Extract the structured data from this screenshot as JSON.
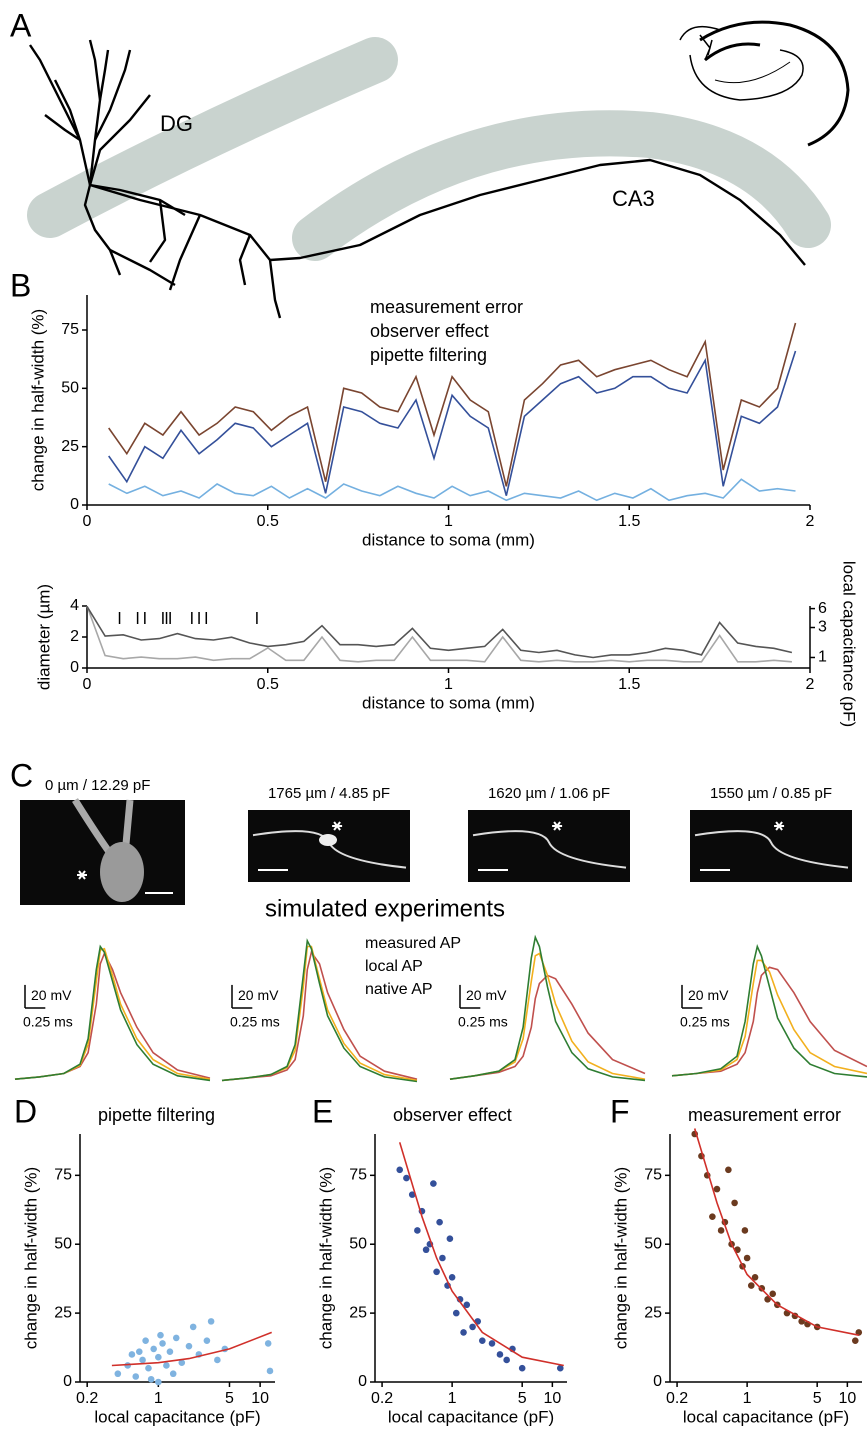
{
  "panels": [
    "A",
    "B",
    "C",
    "D",
    "E",
    "F"
  ],
  "regions": [
    "DG",
    "CA3"
  ],
  "chart_data": [
    {
      "type": "line",
      "xlabel": "distance to soma (mm)",
      "ylabel": "change in half-width (%)",
      "xlim": [
        0,
        2
      ],
      "xticks": [
        0,
        0.5,
        1,
        1.5,
        2
      ],
      "ylim": [
        0,
        90
      ],
      "yticks": [
        0,
        25,
        50,
        75
      ],
      "x": [
        0.06,
        0.11,
        0.16,
        0.21,
        0.26,
        0.31,
        0.36,
        0.41,
        0.46,
        0.51,
        0.56,
        0.61,
        0.66,
        0.71,
        0.76,
        0.81,
        0.86,
        0.91,
        0.96,
        1.01,
        1.06,
        1.11,
        1.16,
        1.21,
        1.26,
        1.31,
        1.36,
        1.41,
        1.46,
        1.51,
        1.56,
        1.61,
        1.66,
        1.71,
        1.76,
        1.81,
        1.86,
        1.91,
        1.96
      ],
      "series": [
        {
          "name": "measurement error",
          "color": "#7a4530",
          "values": [
            33,
            22,
            35,
            30,
            40,
            30,
            35,
            42,
            40,
            32,
            38,
            42,
            10,
            50,
            48,
            42,
            40,
            55,
            30,
            55,
            45,
            40,
            8,
            45,
            52,
            60,
            62,
            55,
            58,
            60,
            62,
            58,
            55,
            70,
            15,
            45,
            42,
            50,
            78
          ]
        },
        {
          "name": "observer effect",
          "color": "#34509a",
          "values": [
            21,
            10,
            25,
            20,
            32,
            22,
            28,
            35,
            33,
            25,
            30,
            35,
            5,
            42,
            40,
            35,
            33,
            45,
            20,
            47,
            38,
            33,
            4,
            38,
            45,
            52,
            55,
            48,
            50,
            55,
            55,
            50,
            48,
            62,
            8,
            38,
            35,
            42,
            66
          ]
        },
        {
          "name": "pipette filtering",
          "color": "#74b0e0",
          "values": [
            9,
            5,
            8,
            4,
            6,
            3,
            9,
            5,
            4,
            8,
            3,
            7,
            3,
            9,
            6,
            4,
            8,
            5,
            3,
            8,
            4,
            6,
            2,
            5,
            4,
            3,
            6,
            2,
            5,
            3,
            7,
            2,
            4,
            5,
            3,
            11,
            6,
            7,
            6
          ]
        }
      ]
    },
    {
      "type": "line",
      "xlabel": "distance to soma (mm)",
      "ylabel": "diameter (µm)",
      "y2label": "local capacitance (pF)",
      "xlim": [
        0,
        2
      ],
      "xticks": [
        0,
        0.5,
        1,
        1.5,
        2
      ],
      "ylim": [
        0,
        4
      ],
      "yticks": [
        0,
        2,
        4
      ],
      "y2lim": [
        0.68,
        6.6
      ],
      "y2ticks": [
        1,
        3,
        6
      ],
      "y2scale": "log",
      "events": [
        0.09,
        0.14,
        0.16,
        0.21,
        0.22,
        0.23,
        0.29,
        0.31,
        0.33,
        0.47
      ],
      "x": [
        0,
        0.05,
        0.1,
        0.15,
        0.2,
        0.25,
        0.3,
        0.35,
        0.4,
        0.45,
        0.5,
        0.55,
        0.6,
        0.65,
        0.7,
        0.75,
        0.8,
        0.85,
        0.9,
        0.95,
        1,
        1.05,
        1.1,
        1.15,
        1.2,
        1.25,
        1.3,
        1.35,
        1.4,
        1.45,
        1.5,
        1.55,
        1.6,
        1.65,
        1.7,
        1.75,
        1.8,
        1.85,
        1.9,
        1.95
      ],
      "series": [
        {
          "color": "#a8a8a8",
          "axis": "y",
          "values": [
            4.0,
            0.8,
            0.6,
            0.7,
            0.6,
            0.6,
            0.7,
            0.5,
            0.6,
            0.6,
            1.3,
            0.5,
            0.5,
            2.0,
            0.5,
            0.4,
            0.5,
            0.5,
            2.0,
            0.5,
            0.5,
            0.5,
            0.4,
            2.0,
            0.5,
            0.4,
            0.5,
            0.4,
            0.4,
            0.5,
            0.4,
            0.5,
            0.5,
            0.4,
            0.4,
            2.1,
            0.4,
            0.4,
            0.5,
            0.4
          ]
        },
        {
          "color": "#555555",
          "axis": "y2",
          "values": [
            6.5,
            2.2,
            2.3,
            1.9,
            2.0,
            2.4,
            2.0,
            1.9,
            2.1,
            1.7,
            1.5,
            1.6,
            1.8,
            3.2,
            1.6,
            1.6,
            1.5,
            1.6,
            2.9,
            1.4,
            1.3,
            1.4,
            1.5,
            2.8,
            1.3,
            1.2,
            1.3,
            1.1,
            1.0,
            1.1,
            1.1,
            1.2,
            1.4,
            1.3,
            1.1,
            3.6,
            1.7,
            1.5,
            1.4,
            1.2
          ]
        }
      ]
    },
    {
      "type": "traces",
      "title": "simulated experiments",
      "x": [
        0,
        0.3,
        0.6,
        0.8,
        0.9,
        1.0,
        1.05,
        1.1,
        1.2,
        1.3,
        1.5,
        1.7,
        2.0,
        2.4
      ],
      "xlim": [
        0,
        2.4
      ],
      "ylim": [
        -80,
        50
      ],
      "series": [
        {
          "name": "measured AP",
          "color": "#c0504d"
        },
        {
          "name": "local AP",
          "color": "#f2b01e"
        },
        {
          "name": "native AP",
          "color": "#2e7d32"
        }
      ],
      "scalebar": {
        "y": {
          "value": 20,
          "label": "20 mV"
        },
        "x": {
          "value": 0.25,
          "label": "0.25 ms"
        }
      },
      "panels": [
        {
          "caption": "0 µm / 12.29 pF",
          "values": [
            [
              -75,
              -73,
              -70,
              -64,
              -52,
              -10,
              25,
              34,
              20,
              0,
              -30,
              -52,
              -67,
              -74
            ],
            [
              -75,
              -73,
              -70,
              -63,
              -45,
              10,
              37,
              38,
              15,
              -10,
              -40,
              -58,
              -70,
              -75
            ],
            [
              -75,
              -73,
              -70,
              -62,
              -40,
              20,
              40,
              35,
              10,
              -15,
              -45,
              -62,
              -72,
              -76
            ]
          ]
        },
        {
          "caption": "1765 µm / 4.85 pF",
          "values": [
            [
              -76,
              -74,
              -72,
              -67,
              -58,
              -20,
              20,
              35,
              25,
              0,
              -32,
              -55,
              -68,
              -75
            ],
            [
              -76,
              -74,
              -71,
              -65,
              -50,
              5,
              40,
              40,
              12,
              -15,
              -44,
              -61,
              -71,
              -76
            ],
            [
              -76,
              -74,
              -71,
              -64,
              -45,
              15,
              45,
              38,
              8,
              -20,
              -48,
              -64,
              -73,
              -77
            ]
          ]
        },
        {
          "caption": "1620 µm / 1.06 pF",
          "values": [
            [
              -75,
              -72,
              -69,
              -64,
              -55,
              -30,
              -5,
              8,
              15,
              12,
              -10,
              -35,
              -58,
              -70
            ],
            [
              -75,
              -72,
              -68,
              -60,
              -40,
              10,
              32,
              34,
              15,
              -10,
              -42,
              -60,
              -70,
              -75
            ],
            [
              -75,
              -72,
              -68,
              -58,
              -30,
              30,
              48,
              40,
              5,
              -25,
              -52,
              -66,
              -73,
              -76
            ]
          ]
        },
        {
          "caption": "1550 µm / 0.85 pF",
          "values": [
            [
              -72,
              -70,
              -68,
              -62,
              -52,
              -25,
              0,
              15,
              22,
              20,
              0,
              -25,
              -50,
              -64
            ],
            [
              -72,
              -70,
              -67,
              -58,
              -38,
              8,
              28,
              28,
              18,
              -2,
              -32,
              -52,
              -64,
              -70
            ],
            [
              -72,
              -70,
              -66,
              -55,
              -25,
              25,
              40,
              32,
              5,
              -22,
              -48,
              -62,
              -70,
              -73
            ]
          ]
        }
      ]
    },
    {
      "type": "scatter",
      "title": "pipette filtering",
      "color": "#7fb3e0",
      "xlabel": "local capacitance (pF)",
      "ylabel": "change in half-width (%)",
      "xscale": "log",
      "xlim": [
        0.17,
        14
      ],
      "xticks": [
        0.2,
        1,
        5,
        10
      ],
      "ylim": [
        0,
        90
      ],
      "yticks": [
        0,
        25,
        50,
        75
      ],
      "x": [
        0.4,
        0.5,
        0.55,
        0.6,
        0.7,
        0.75,
        0.8,
        0.9,
        1,
        1,
        1.1,
        1.2,
        1.3,
        1.5,
        1.7,
        2,
        2.2,
        2.5,
        3,
        3.3,
        3.8,
        4.5,
        12,
        12.5,
        0.65,
        0.85,
        1.05,
        1.4
      ],
      "values": [
        3,
        6,
        10,
        2,
        8,
        15,
        5,
        12,
        0,
        9,
        14,
        6,
        11,
        16,
        7,
        13,
        20,
        10,
        15,
        22,
        8,
        12,
        14,
        4,
        11,
        1,
        17,
        3
      ],
      "fit": {
        "color": "#d0302a",
        "x": [
          0.35,
          0.5,
          1,
          2,
          5,
          13
        ],
        "values": [
          6,
          6.3,
          7,
          8.5,
          12,
          18
        ]
      }
    },
    {
      "type": "scatter",
      "title": "observer effect",
      "color": "#34509a",
      "xlabel": "local capacitance (pF)",
      "ylabel": "change in half-width (%)",
      "xscale": "log",
      "xlim": [
        0.17,
        14
      ],
      "xticks": [
        0.2,
        1,
        5,
        10
      ],
      "ylim": [
        0,
        90
      ],
      "yticks": [
        0,
        25,
        50,
        75
      ],
      "x": [
        0.3,
        0.35,
        0.4,
        0.45,
        0.5,
        0.55,
        0.6,
        0.65,
        0.7,
        0.8,
        0.9,
        1,
        1.1,
        1.2,
        1.4,
        1.6,
        1.8,
        2,
        2.5,
        3,
        3.5,
        4,
        5,
        12,
        0.75,
        0.95,
        1.3
      ],
      "values": [
        77,
        74,
        68,
        55,
        62,
        48,
        50,
        72,
        40,
        45,
        35,
        38,
        25,
        30,
        28,
        20,
        22,
        15,
        14,
        10,
        8,
        12,
        5,
        5,
        58,
        52,
        18
      ],
      "fit": {
        "color": "#d0302a",
        "x": [
          0.3,
          0.5,
          0.7,
          1,
          2,
          5,
          13
        ],
        "values": [
          87,
          60,
          45,
          33,
          18,
          9,
          6
        ]
      }
    },
    {
      "type": "scatter",
      "title": "measurement error",
      "color": "#6b3a1f",
      "xlabel": "local capacitance (pF)",
      "ylabel": "change in half-width (%)",
      "xscale": "log",
      "xlim": [
        0.17,
        14
      ],
      "xticks": [
        0.2,
        1,
        5,
        10
      ],
      "ylim": [
        0,
        90
      ],
      "yticks": [
        0,
        25,
        50,
        75
      ],
      "x": [
        0.3,
        0.35,
        0.4,
        0.45,
        0.5,
        0.55,
        0.6,
        0.65,
        0.7,
        0.8,
        0.9,
        1,
        1.1,
        1.2,
        1.4,
        1.6,
        1.8,
        2,
        2.5,
        3,
        3.5,
        4,
        5,
        12,
        13,
        0.75,
        0.95
      ],
      "values": [
        90,
        82,
        75,
        60,
        70,
        55,
        58,
        77,
        50,
        48,
        42,
        45,
        35,
        38,
        34,
        30,
        32,
        28,
        25,
        24,
        22,
        21,
        20,
        15,
        18,
        65,
        55
      ],
      "fit": {
        "color": "#d0302a",
        "x": [
          0.3,
          0.5,
          0.7,
          1,
          2,
          5,
          13
        ],
        "values": [
          92,
          65,
          50,
          39,
          28,
          20,
          17
        ]
      }
    }
  ]
}
